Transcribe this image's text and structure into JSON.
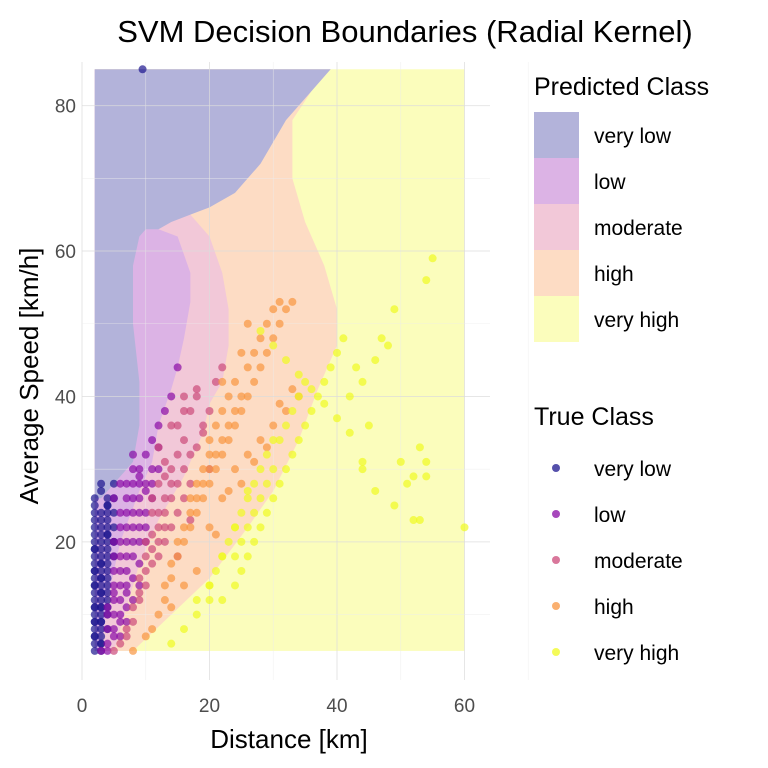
{
  "chart_data": {
    "type": "scatter",
    "title": "SVM Decision Boundaries (Radial Kernel)",
    "xlabel": "Distance [km]",
    "ylabel": "Average Speed [km/h]",
    "xlim": [
      0,
      64
    ],
    "ylim": [
      1,
      86
    ],
    "x_ticks": [
      0,
      20,
      40,
      60
    ],
    "y_ticks": [
      20,
      40,
      60,
      80
    ],
    "grid": true,
    "legend_position": "right",
    "predicted_legend_title": "Predicted Class",
    "true_legend_title": "True Class",
    "classes": [
      "very low",
      "low",
      "moderate",
      "high",
      "very high"
    ],
    "region_colors": [
      "#b3b3da",
      "#dcb3e5",
      "#f2c8d8",
      "#fddcc4",
      "#fbfdbc"
    ],
    "point_colors": [
      "#1c168f",
      "#8a0ba6",
      "#cc4a7a",
      "#f89540",
      "#f0f921"
    ],
    "decision_regions": {
      "x_range": [
        2,
        60
      ],
      "y_range": [
        5,
        85
      ],
      "boundaries": [
        {
          "between": [
            "very low",
            "low"
          ],
          "points": [
            [
              2,
              5
            ],
            [
              2,
              26
            ],
            [
              3,
              26
            ],
            [
              5,
              28
            ],
            [
              8,
              31
            ],
            [
              9,
              36
            ],
            [
              9,
              42
            ],
            [
              8,
              50
            ],
            [
              8,
              58
            ],
            [
              9,
              62
            ],
            [
              10,
              63
            ],
            [
              12,
              63
            ],
            [
              14,
              64
            ],
            [
              17,
              65
            ],
            [
              20,
              66
            ],
            [
              24,
              68
            ],
            [
              28,
              72
            ],
            [
              32,
              78
            ],
            [
              36,
              82
            ],
            [
              39,
              85
            ]
          ]
        },
        {
          "between": [
            "low",
            "moderate"
          ],
          "points": [
            [
              3,
              5
            ],
            [
              4,
              12
            ],
            [
              6,
              20
            ],
            [
              9,
              27
            ],
            [
              11,
              31
            ],
            [
              12,
              36
            ],
            [
              14,
              41
            ],
            [
              15,
              44
            ],
            [
              16,
              48
            ],
            [
              17,
              53
            ],
            [
              17,
              57
            ],
            [
              15,
              62
            ],
            [
              12,
              63
            ]
          ]
        },
        {
          "between": [
            "moderate",
            "high"
          ],
          "points": [
            [
              5,
              5
            ],
            [
              7,
              11
            ],
            [
              9,
              17
            ],
            [
              12,
              23
            ],
            [
              16,
              29
            ],
            [
              19,
              35
            ],
            [
              20,
              39
            ],
            [
              22,
              42
            ],
            [
              23,
              47
            ],
            [
              23,
              52
            ],
            [
              22,
              57
            ],
            [
              20,
              62
            ],
            [
              17,
              65
            ]
          ]
        },
        {
          "between": [
            "high",
            "very high"
          ],
          "points": [
            [
              8,
              5
            ],
            [
              14,
              10
            ],
            [
              20,
              15
            ],
            [
              26,
              22
            ],
            [
              30,
              27
            ],
            [
              34,
              34
            ],
            [
              37,
              41
            ],
            [
              40,
              47
            ],
            [
              40,
              52
            ],
            [
              38,
              58
            ],
            [
              35,
              64
            ],
            [
              33,
              70
            ],
            [
              33,
              78
            ],
            [
              36,
              82
            ],
            [
              39,
              85
            ]
          ]
        }
      ]
    },
    "series": [
      {
        "name": "very low",
        "x": [
          2,
          2,
          2,
          2,
          2,
          2,
          2,
          2,
          2,
          2,
          2,
          2,
          2,
          2,
          2,
          2,
          2,
          2,
          3,
          3,
          3,
          3,
          3,
          3,
          3,
          3,
          3,
          3,
          3,
          3,
          3,
          3,
          3,
          3,
          3,
          4,
          4,
          4,
          4,
          4,
          4,
          4,
          4,
          4,
          4,
          4,
          4,
          4,
          4,
          5,
          5,
          5,
          5,
          5,
          5,
          9.5,
          2,
          3,
          4,
          3,
          2,
          3,
          4,
          2,
          3,
          2,
          3,
          2,
          2,
          3,
          4,
          2,
          3,
          5,
          4,
          3,
          2,
          3,
          4,
          3,
          4,
          2,
          3,
          2
        ],
        "y": [
          5,
          6,
          7,
          8,
          9,
          10,
          11,
          12,
          13,
          14,
          15,
          16,
          17,
          18,
          19,
          20,
          21,
          22,
          5,
          6,
          7,
          8,
          9,
          10,
          11,
          12,
          13,
          14,
          15,
          16,
          17,
          18,
          20,
          22,
          24,
          8,
          10,
          12,
          14,
          16,
          18,
          20,
          22,
          24,
          26,
          19,
          21,
          23,
          25,
          18,
          20,
          22,
          24,
          26,
          28,
          85,
          23,
          21,
          25,
          11,
          9,
          13,
          15,
          7,
          19,
          24,
          17,
          16,
          14,
          9,
          17,
          11,
          23,
          20,
          21,
          6,
          25,
          27,
          13,
          15,
          11,
          19,
          28,
          26
        ]
      },
      {
        "name": "low",
        "x": [
          3,
          4,
          4,
          4,
          5,
          5,
          5,
          5,
          5,
          5,
          6,
          6,
          6,
          6,
          6,
          6,
          6,
          7,
          7,
          7,
          7,
          7,
          7,
          7,
          8,
          8,
          8,
          8,
          8,
          8,
          8,
          9,
          9,
          9,
          9,
          9,
          9,
          10,
          10,
          10,
          10,
          11,
          11,
          11,
          12,
          12,
          13,
          14,
          15,
          11,
          8,
          9,
          10,
          4,
          5,
          6,
          7,
          6,
          5,
          8,
          9,
          7,
          10,
          12,
          5,
          6,
          7,
          8,
          9,
          4,
          5,
          6,
          7
        ],
        "y": [
          5,
          6,
          8,
          10,
          10,
          12,
          14,
          16,
          18,
          20,
          12,
          14,
          16,
          18,
          20,
          22,
          24,
          14,
          16,
          18,
          20,
          22,
          24,
          26,
          18,
          20,
          22,
          24,
          26,
          28,
          30,
          20,
          22,
          24,
          26,
          28,
          30,
          22,
          24,
          28,
          32,
          26,
          30,
          34,
          30,
          36,
          38,
          40,
          44,
          28,
          32,
          29,
          27,
          5,
          7,
          9,
          11,
          28,
          26,
          15,
          17,
          28,
          20,
          33,
          8,
          7,
          9,
          12,
          14,
          11,
          13,
          10,
          13
        ]
      },
      {
        "name": "moderate",
        "x": [
          5,
          6,
          7,
          8,
          8,
          9,
          9,
          10,
          10,
          10,
          11,
          11,
          11,
          12,
          12,
          12,
          12,
          13,
          13,
          13,
          13,
          14,
          14,
          14,
          14,
          15,
          15,
          15,
          15,
          16,
          16,
          16,
          17,
          17,
          17,
          18,
          18,
          19,
          20,
          21,
          22,
          14,
          16,
          18,
          11,
          12,
          13,
          9,
          7,
          10,
          15,
          17,
          13,
          12,
          11,
          19,
          20,
          16
        ],
        "y": [
          5,
          6,
          7,
          9,
          11,
          13,
          15,
          14,
          16,
          18,
          17,
          19,
          21,
          18,
          20,
          22,
          24,
          20,
          22,
          24,
          26,
          22,
          26,
          28,
          30,
          24,
          28,
          32,
          36,
          26,
          30,
          34,
          28,
          32,
          38,
          33,
          40,
          36,
          38,
          42,
          44,
          36,
          38,
          41,
          26,
          28,
          31,
          12,
          8,
          20,
          18,
          23,
          29,
          33,
          24,
          35,
          30,
          40
        ]
      },
      {
        "name": "high",
        "x": [
          8,
          10,
          11,
          12,
          13,
          13,
          14,
          14,
          15,
          15,
          16,
          16,
          17,
          17,
          17,
          18,
          18,
          18,
          19,
          19,
          19,
          20,
          20,
          20,
          20,
          21,
          21,
          21,
          22,
          22,
          22,
          22,
          23,
          23,
          23,
          24,
          24,
          24,
          25,
          25,
          25,
          26,
          26,
          26,
          27,
          27,
          28,
          28,
          29,
          29,
          30,
          30,
          31,
          31,
          32,
          33,
          24,
          26,
          28,
          30,
          32,
          34,
          22,
          20,
          18,
          16,
          14,
          21,
          23,
          25,
          27,
          29,
          31,
          33
        ],
        "y": [
          5,
          7,
          8,
          10,
          12,
          14,
          15,
          17,
          18,
          20,
          20,
          22,
          22,
          24,
          26,
          24,
          26,
          28,
          26,
          28,
          30,
          28,
          30,
          32,
          34,
          30,
          32,
          36,
          32,
          34,
          38,
          42,
          34,
          36,
          40,
          36,
          38,
          42,
          38,
          40,
          46,
          40,
          44,
          50,
          42,
          46,
          44,
          48,
          46,
          50,
          48,
          52,
          50,
          53,
          52,
          53,
          30,
          32,
          34,
          36,
          38,
          40,
          26,
          22,
          16,
          14,
          11,
          21,
          27,
          28,
          31,
          33,
          39,
          41
        ]
      },
      {
        "name": "very high",
        "x": [
          14,
          16,
          18,
          20,
          20,
          21,
          22,
          22,
          23,
          24,
          24,
          24,
          25,
          25,
          25,
          26,
          26,
          26,
          27,
          27,
          27,
          28,
          28,
          28,
          29,
          29,
          29,
          30,
          30,
          30,
          31,
          31,
          32,
          32,
          33,
          33,
          34,
          34,
          35,
          35,
          36,
          37,
          38,
          39,
          40,
          41,
          42,
          43,
          44,
          44,
          45,
          46,
          47,
          48,
          49,
          50,
          51,
          52,
          53,
          54,
          54,
          55,
          60,
          54,
          53,
          49,
          46,
          52,
          44,
          42,
          40,
          38,
          36,
          34,
          32,
          30,
          28,
          26,
          24,
          22,
          20,
          18
        ],
        "y": [
          6,
          8,
          10,
          12,
          14,
          16,
          12,
          18,
          20,
          14,
          18,
          22,
          16,
          20,
          24,
          18,
          22,
          26,
          20,
          24,
          28,
          22,
          26,
          30,
          24,
          28,
          32,
          26,
          30,
          34,
          28,
          34,
          30,
          36,
          32,
          38,
          34,
          40,
          36,
          42,
          38,
          40,
          42,
          44,
          46,
          48,
          40,
          44,
          30,
          42,
          36,
          45,
          48,
          47,
          52,
          31,
          28,
          29,
          23,
          31,
          56,
          59,
          22,
          29,
          33,
          25,
          27,
          23,
          31,
          35,
          37,
          39,
          41,
          43,
          45,
          47,
          49,
          27,
          22,
          18,
          14,
          12
        ]
      }
    ]
  }
}
